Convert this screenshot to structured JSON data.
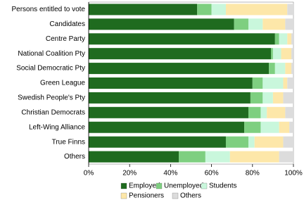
{
  "chart_data": {
    "type": "stacked-bar-horizontal",
    "categories": [
      "Persons entitled to vote",
      "Candidates",
      "Centre Party",
      "National Coalition Pty",
      "Social Democratic Pty",
      "Green League",
      "Swedish People's Pty",
      "Christian Democrats",
      "Left-Wing Alliance",
      "True Finns",
      "Others"
    ],
    "series": [
      {
        "name": "Employed",
        "color": "#1f6b1f",
        "values": [
          53,
          71,
          91,
          89,
          88,
          80,
          79,
          78,
          76,
          67,
          44
        ]
      },
      {
        "name": "Unemployed",
        "color": "#7ecf80",
        "values": [
          7,
          7,
          2,
          1,
          3,
          5,
          6,
          6,
          8,
          11,
          13
        ]
      },
      {
        "name": "Students",
        "color": "#c9f7dc",
        "values": [
          7,
          7,
          4,
          4,
          5,
          10,
          5,
          3,
          9,
          3,
          12
        ]
      },
      {
        "name": "Pensioners",
        "color": "#fde7a9",
        "values": [
          30,
          11,
          2,
          5,
          3,
          2,
          5,
          9,
          5,
          14,
          24
        ]
      },
      {
        "name": "Others",
        "color": "#dcdcdc",
        "values": [
          3,
          4,
          1,
          1,
          1,
          3,
          5,
          4,
          2,
          5,
          7
        ]
      }
    ],
    "xlim": [
      0,
      100
    ],
    "xticks": [
      {
        "value": 0,
        "label": "0%"
      },
      {
        "value": 20,
        "label": "20%"
      },
      {
        "value": 40,
        "label": "40%"
      },
      {
        "value": 60,
        "label": "60%"
      },
      {
        "value": 80,
        "label": "80%"
      },
      {
        "value": 100,
        "label": "100%"
      }
    ]
  }
}
